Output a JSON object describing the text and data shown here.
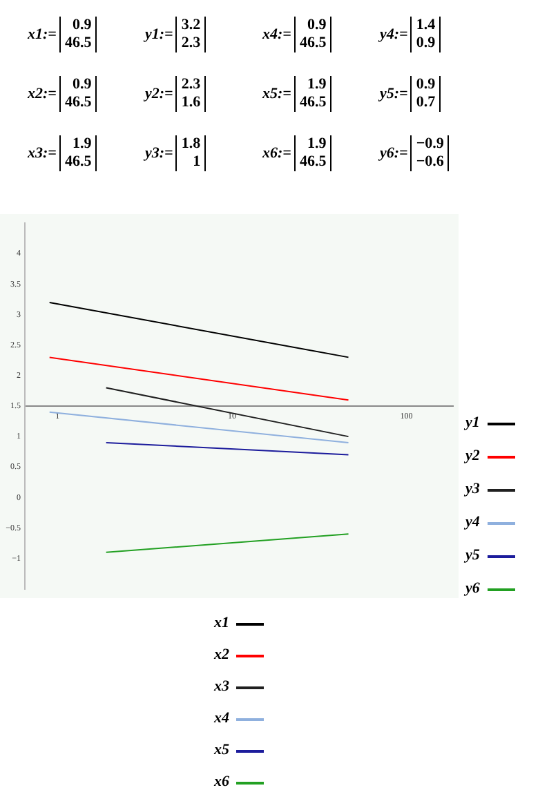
{
  "chart_data": {
    "type": "line",
    "log": "x",
    "xlim": [
      0.65,
      185
    ],
    "xticks": [
      1,
      10,
      100
    ],
    "ylim": [
      -1.5,
      4.5
    ],
    "yticks": [
      -1,
      -0.5,
      0,
      0.5,
      1,
      1.5,
      2,
      2.5,
      3,
      3.5,
      4
    ],
    "grid": false,
    "legend": "right",
    "marker": "none",
    "line_style": "solid",
    "series": [
      {
        "name": "y1",
        "color": "#000000",
        "x": [
          0.9,
          46.5
        ],
        "values": [
          3.2,
          2.3
        ]
      },
      {
        "name": "y2",
        "color": "#ff0000",
        "x": [
          0.9,
          46.5
        ],
        "values": [
          2.3,
          1.6
        ]
      },
      {
        "name": "y3",
        "color": "#202020",
        "x": [
          1.9,
          46.5
        ],
        "values": [
          1.8,
          1
        ]
      },
      {
        "name": "y4",
        "color": "#8fb0de",
        "x": [
          0.9,
          46.5
        ],
        "values": [
          1.4,
          0.9
        ]
      },
      {
        "name": "y5",
        "color": "#1c1c9c",
        "x": [
          1.9,
          46.5
        ],
        "values": [
          0.9,
          0.7
        ]
      },
      {
        "name": "y6",
        "color": "#22a022",
        "x": [
          1.9,
          46.5
        ],
        "values": [
          -0.9,
          -0.6
        ]
      }
    ],
    "annotations": [
      "x1:=",
      "0.9",
      "46.5",
      "y1:=",
      "3.2",
      "2.3",
      "x2:=",
      "0.9",
      "46.5",
      "y2:=",
      "2.3",
      "1.6",
      "x3:=",
      "1.9",
      "46.5",
      "y3:=",
      "1.8",
      "1",
      "x4:=",
      "0.9",
      "46.5",
      "y4:=",
      "1.4",
      "0.9",
      "x5:=",
      "1.9",
      "46.5",
      "y5:=",
      "0.9",
      "0.7",
      "x6:=",
      "1.9",
      "46.5",
      "y6:=",
      "−0.9",
      "−0.6",
      "x1",
      "x2",
      "x3",
      "x4",
      "x5",
      "x6"
    ]
  }
}
